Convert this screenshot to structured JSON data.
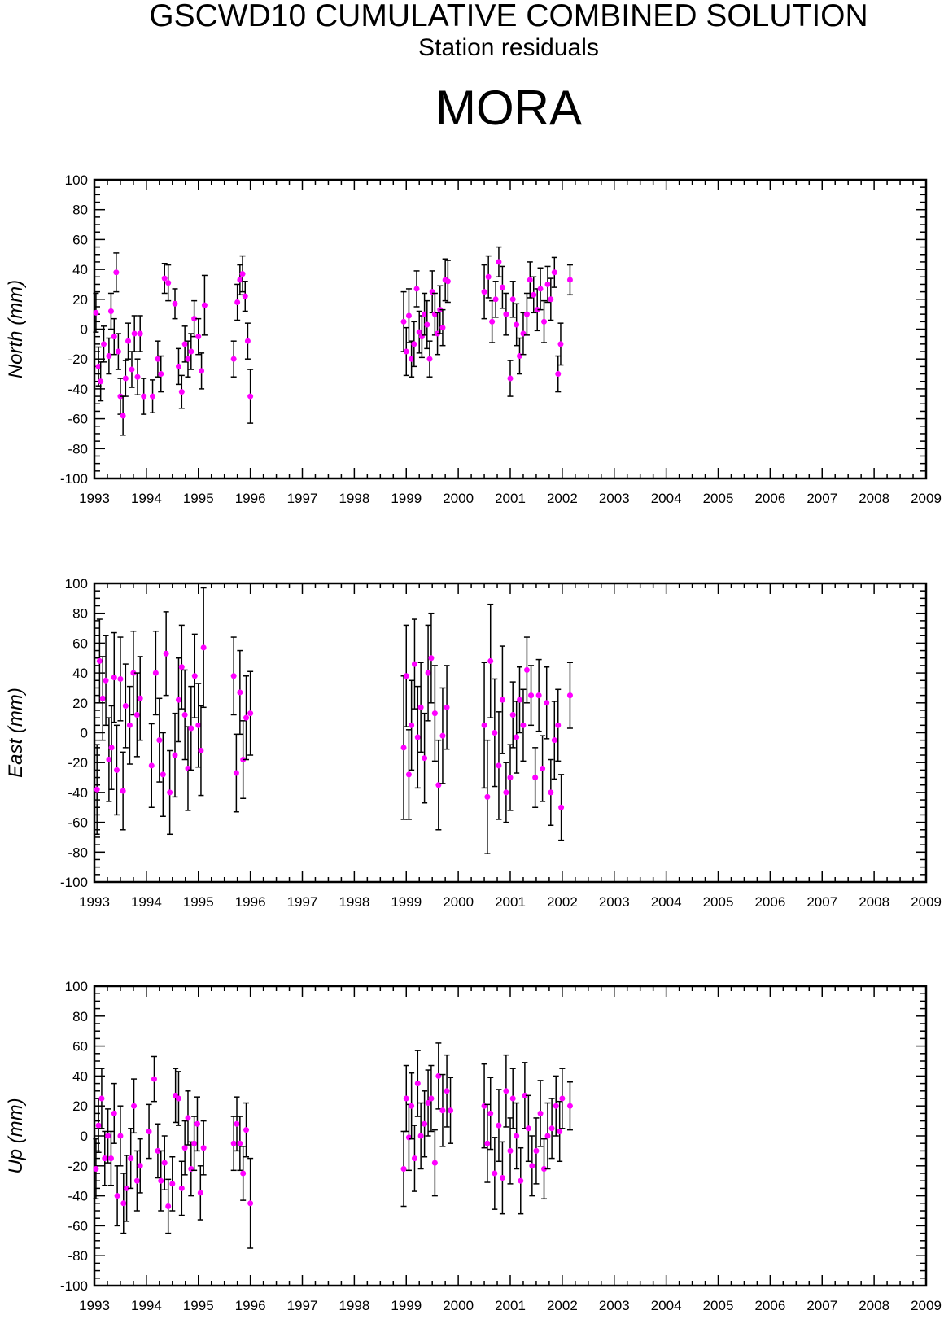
{
  "header": {
    "title": "GSCWD10 CUMULATIVE COMBINED SOLUTION",
    "subtitle": "Station residuals",
    "station": "MORA"
  },
  "colors": {
    "marker": "#ff00ff",
    "errorbar": "#000000",
    "axis": "#000000"
  },
  "chart_data": [
    {
      "type": "scatter",
      "ylabel": "North (mm)",
      "xlim": [
        1993,
        2009
      ],
      "ylim": [
        -100,
        100
      ],
      "x_ticks": [
        "1993",
        "1994",
        "1995",
        "1996",
        "1997",
        "1998",
        "1999",
        "2000",
        "2001",
        "2002",
        "2003",
        "2004",
        "2005",
        "2006",
        "2007",
        "2008",
        "2009"
      ],
      "y_ticks": [
        "100",
        "80",
        "60",
        "40",
        "20",
        "0",
        "-20",
        "-40",
        "-60",
        "-80",
        "-100"
      ],
      "points": [
        [
          1993.03,
          11,
          13
        ],
        [
          1993.08,
          -25,
          13
        ],
        [
          1993.12,
          -35,
          13
        ],
        [
          1993.18,
          -10,
          12
        ],
        [
          1993.28,
          -18,
          12
        ],
        [
          1993.32,
          12,
          12
        ],
        [
          1993.38,
          -5,
          12
        ],
        [
          1993.42,
          38,
          13
        ],
        [
          1993.46,
          -15,
          12
        ],
        [
          1993.5,
          -45,
          12
        ],
        [
          1993.55,
          -58,
          13
        ],
        [
          1993.6,
          -33,
          12
        ],
        [
          1993.65,
          -8,
          12
        ],
        [
          1993.72,
          -27,
          12
        ],
        [
          1993.77,
          -3,
          12
        ],
        [
          1993.83,
          -32,
          12
        ],
        [
          1993.88,
          -3,
          12
        ],
        [
          1993.95,
          -45,
          12
        ],
        [
          1994.12,
          -45,
          11
        ],
        [
          1994.22,
          -20,
          12
        ],
        [
          1994.28,
          -30,
          12
        ],
        [
          1994.35,
          34,
          10
        ],
        [
          1994.42,
          31,
          12
        ],
        [
          1994.55,
          17,
          10
        ],
        [
          1994.62,
          -25,
          12
        ],
        [
          1994.68,
          -42,
          11
        ],
        [
          1994.74,
          -10,
          12
        ],
        [
          1994.8,
          -20,
          12
        ],
        [
          1994.86,
          -15,
          12
        ],
        [
          1994.92,
          7,
          12
        ],
        [
          1995.0,
          -5,
          12
        ],
        [
          1995.06,
          -28,
          12
        ],
        [
          1995.12,
          16,
          20
        ],
        [
          1995.68,
          -20,
          12
        ],
        [
          1995.75,
          18,
          12
        ],
        [
          1995.8,
          33,
          10
        ],
        [
          1995.85,
          37,
          12
        ],
        [
          1995.9,
          22,
          10
        ],
        [
          1995.95,
          -8,
          12
        ],
        [
          1996.0,
          -45,
          18
        ],
        [
          1998.95,
          5,
          20
        ],
        [
          1999.0,
          -15,
          16
        ],
        [
          1999.05,
          9,
          18
        ],
        [
          1999.1,
          -20,
          12
        ],
        [
          1999.15,
          -10,
          15
        ],
        [
          1999.2,
          27,
          12
        ],
        [
          1999.25,
          -2,
          14
        ],
        [
          1999.3,
          -5,
          14
        ],
        [
          1999.35,
          10,
          14
        ],
        [
          1999.4,
          3,
          16
        ],
        [
          1999.45,
          -20,
          12
        ],
        [
          1999.5,
          25,
          14
        ],
        [
          1999.55,
          10,
          14
        ],
        [
          1999.6,
          -3,
          14
        ],
        [
          1999.65,
          13,
          16
        ],
        [
          1999.7,
          1,
          12
        ],
        [
          1999.75,
          33,
          14
        ],
        [
          1999.8,
          32,
          14
        ],
        [
          2000.5,
          25,
          18
        ],
        [
          2000.58,
          35,
          14
        ],
        [
          2000.65,
          5,
          14
        ],
        [
          2000.72,
          20,
          12
        ],
        [
          2000.78,
          45,
          10
        ],
        [
          2000.85,
          28,
          14
        ],
        [
          2000.92,
          10,
          14
        ],
        [
          2001.0,
          -33,
          12
        ],
        [
          2001.05,
          20,
          12
        ],
        [
          2001.12,
          3,
          14
        ],
        [
          2001.18,
          -18,
          12
        ],
        [
          2001.25,
          -3,
          14
        ],
        [
          2001.32,
          10,
          14
        ],
        [
          2001.38,
          33,
          12
        ],
        [
          2001.45,
          23,
          12
        ],
        [
          2001.52,
          13,
          14
        ],
        [
          2001.58,
          27,
          14
        ],
        [
          2001.65,
          5,
          14
        ],
        [
          2001.72,
          30,
          12
        ],
        [
          2001.78,
          20,
          14
        ],
        [
          2001.85,
          38,
          10
        ],
        [
          2001.92,
          -30,
          12
        ],
        [
          2001.97,
          -10,
          14
        ],
        [
          2002.15,
          33,
          10
        ]
      ]
    },
    {
      "type": "scatter",
      "ylabel": "East (mm)",
      "xlim": [
        1993,
        2009
      ],
      "ylim": [
        -100,
        100
      ],
      "x_ticks": [
        "1993",
        "1994",
        "1995",
        "1996",
        "1997",
        "1998",
        "1999",
        "2000",
        "2001",
        "2002",
        "2003",
        "2004",
        "2005",
        "2006",
        "2007",
        "2008",
        "2009"
      ],
      "y_ticks": [
        "100",
        "80",
        "60",
        "40",
        "20",
        "0",
        "-20",
        "-40",
        "-60",
        "-80",
        "-100"
      ],
      "points": [
        [
          1993.05,
          -38,
          30
        ],
        [
          1993.1,
          48,
          28
        ],
        [
          1993.16,
          23,
          28
        ],
        [
          1993.22,
          35,
          30
        ],
        [
          1993.28,
          -18,
          28
        ],
        [
          1993.33,
          -10,
          28
        ],
        [
          1993.38,
          37,
          30
        ],
        [
          1993.43,
          -25,
          30
        ],
        [
          1993.5,
          36,
          28
        ],
        [
          1993.55,
          -39,
          26
        ],
        [
          1993.6,
          18,
          28
        ],
        [
          1993.68,
          5,
          26
        ],
        [
          1993.75,
          40,
          28
        ],
        [
          1993.82,
          12,
          28
        ],
        [
          1993.88,
          23,
          28
        ],
        [
          1994.1,
          -22,
          28
        ],
        [
          1994.18,
          40,
          28
        ],
        [
          1994.25,
          -5,
          28
        ],
        [
          1994.32,
          -28,
          28
        ],
        [
          1994.38,
          53,
          28
        ],
        [
          1994.45,
          -40,
          28
        ],
        [
          1994.55,
          -15,
          28
        ],
        [
          1994.62,
          22,
          28
        ],
        [
          1994.68,
          44,
          28
        ],
        [
          1994.74,
          12,
          30
        ],
        [
          1994.8,
          -24,
          28
        ],
        [
          1994.86,
          3,
          28
        ],
        [
          1994.93,
          38,
          28
        ],
        [
          1995.0,
          5,
          28
        ],
        [
          1995.05,
          -12,
          30
        ],
        [
          1995.1,
          57,
          40
        ],
        [
          1995.68,
          38,
          26
        ],
        [
          1995.73,
          -27,
          26
        ],
        [
          1995.8,
          27,
          28
        ],
        [
          1995.86,
          -18,
          26
        ],
        [
          1995.92,
          10,
          28
        ],
        [
          1996.0,
          13,
          28
        ],
        [
          1998.95,
          -10,
          48
        ],
        [
          1999.0,
          38,
          34
        ],
        [
          1999.05,
          -28,
          30
        ],
        [
          1999.1,
          5,
          30
        ],
        [
          1999.16,
          46,
          30
        ],
        [
          1999.22,
          -3,
          34
        ],
        [
          1999.28,
          17,
          30
        ],
        [
          1999.35,
          -17,
          30
        ],
        [
          1999.42,
          40,
          32
        ],
        [
          1999.48,
          50,
          30
        ],
        [
          1999.55,
          13,
          32
        ],
        [
          1999.62,
          -35,
          30
        ],
        [
          1999.7,
          -2,
          32
        ],
        [
          1999.78,
          17,
          28
        ],
        [
          2000.5,
          5,
          42
        ],
        [
          2000.56,
          -43,
          38
        ],
        [
          2000.62,
          48,
          38
        ],
        [
          2000.7,
          0,
          36
        ],
        [
          2000.78,
          -22,
          36
        ],
        [
          2000.85,
          22,
          36
        ],
        [
          2000.92,
          -40,
          20
        ],
        [
          2001.0,
          -30,
          22
        ],
        [
          2001.05,
          12,
          22
        ],
        [
          2001.12,
          -3,
          24
        ],
        [
          2001.18,
          22,
          22
        ],
        [
          2001.25,
          5,
          24
        ],
        [
          2001.32,
          42,
          22
        ],
        [
          2001.4,
          25,
          20
        ],
        [
          2001.48,
          -30,
          20
        ],
        [
          2001.55,
          25,
          24
        ],
        [
          2001.62,
          -24,
          22
        ],
        [
          2001.7,
          20,
          24
        ],
        [
          2001.78,
          -40,
          22
        ],
        [
          2001.85,
          -5,
          26
        ],
        [
          2001.92,
          5,
          24
        ],
        [
          2001.98,
          -50,
          22
        ],
        [
          2002.15,
          25,
          22
        ]
      ]
    },
    {
      "type": "scatter",
      "ylabel": "Up (mm)",
      "xlim": [
        1993,
        2009
      ],
      "ylim": [
        -100,
        100
      ],
      "x_ticks": [
        "1993",
        "1994",
        "1995",
        "1996",
        "1997",
        "1998",
        "1999",
        "2000",
        "2001",
        "2002",
        "2003",
        "2004",
        "2005",
        "2006",
        "2007",
        "2008",
        "2009"
      ],
      "y_ticks": [
        "100",
        "80",
        "60",
        "40",
        "20",
        "0",
        "-20",
        "-40",
        "-60",
        "-80",
        "-100"
      ],
      "points": [
        [
          1993.03,
          -22,
          20
        ],
        [
          1993.08,
          7,
          18
        ],
        [
          1993.14,
          25,
          20
        ],
        [
          1993.2,
          -15,
          18
        ],
        [
          1993.26,
          0,
          18
        ],
        [
          1993.32,
          -15,
          18
        ],
        [
          1993.38,
          15,
          20
        ],
        [
          1993.44,
          -40,
          20
        ],
        [
          1993.5,
          0,
          20
        ],
        [
          1993.56,
          -45,
          20
        ],
        [
          1993.62,
          -35,
          22
        ],
        [
          1993.7,
          -15,
          20
        ],
        [
          1993.76,
          20,
          18
        ],
        [
          1993.82,
          -30,
          20
        ],
        [
          1993.88,
          -20,
          18
        ],
        [
          1994.05,
          3,
          18
        ],
        [
          1994.15,
          38,
          15
        ],
        [
          1994.22,
          -10,
          18
        ],
        [
          1994.28,
          -30,
          20
        ],
        [
          1994.35,
          -18,
          18
        ],
        [
          1994.42,
          -47,
          18
        ],
        [
          1994.5,
          -32,
          18
        ],
        [
          1994.56,
          27,
          18
        ],
        [
          1994.62,
          25,
          18
        ],
        [
          1994.68,
          -35,
          18
        ],
        [
          1994.74,
          -8,
          18
        ],
        [
          1994.8,
          12,
          18
        ],
        [
          1994.86,
          -22,
          18
        ],
        [
          1994.92,
          -5,
          18
        ],
        [
          1994.98,
          8,
          18
        ],
        [
          1995.04,
          -38,
          18
        ],
        [
          1995.1,
          -8,
          18
        ],
        [
          1995.68,
          -5,
          18
        ],
        [
          1995.74,
          8,
          18
        ],
        [
          1995.8,
          -5,
          18
        ],
        [
          1995.86,
          -25,
          18
        ],
        [
          1995.92,
          4,
          18
        ],
        [
          1996.0,
          -45,
          30
        ],
        [
          1998.95,
          -22,
          25
        ],
        [
          1999.0,
          25,
          22
        ],
        [
          1999.05,
          -1,
          22
        ],
        [
          1999.1,
          20,
          22
        ],
        [
          1999.16,
          -15,
          22
        ],
        [
          1999.22,
          35,
          22
        ],
        [
          1999.28,
          0,
          22
        ],
        [
          1999.35,
          8,
          22
        ],
        [
          1999.42,
          22,
          22
        ],
        [
          1999.48,
          25,
          22
        ],
        [
          1999.55,
          -18,
          22
        ],
        [
          1999.62,
          40,
          22
        ],
        [
          1999.7,
          17,
          24
        ],
        [
          1999.78,
          30,
          24
        ],
        [
          1999.85,
          17,
          22
        ],
        [
          2000.5,
          20,
          28
        ],
        [
          2000.56,
          -5,
          26
        ],
        [
          2000.62,
          15,
          24
        ],
        [
          2000.7,
          -25,
          24
        ],
        [
          2000.78,
          7,
          24
        ],
        [
          2000.85,
          -28,
          24
        ],
        [
          2000.92,
          30,
          24
        ],
        [
          2001.0,
          -10,
          22
        ],
        [
          2001.05,
          25,
          20
        ],
        [
          2001.12,
          0,
          22
        ],
        [
          2001.2,
          -30,
          22
        ],
        [
          2001.28,
          27,
          22
        ],
        [
          2001.35,
          5,
          22
        ],
        [
          2001.42,
          -20,
          20
        ],
        [
          2001.5,
          -10,
          22
        ],
        [
          2001.58,
          15,
          22
        ],
        [
          2001.65,
          -22,
          20
        ],
        [
          2001.72,
          0,
          22
        ],
        [
          2001.8,
          5,
          20
        ],
        [
          2001.88,
          20,
          20
        ],
        [
          2001.95,
          3,
          20
        ],
        [
          2002.0,
          25,
          20
        ],
        [
          2002.15,
          20,
          16
        ]
      ]
    }
  ]
}
